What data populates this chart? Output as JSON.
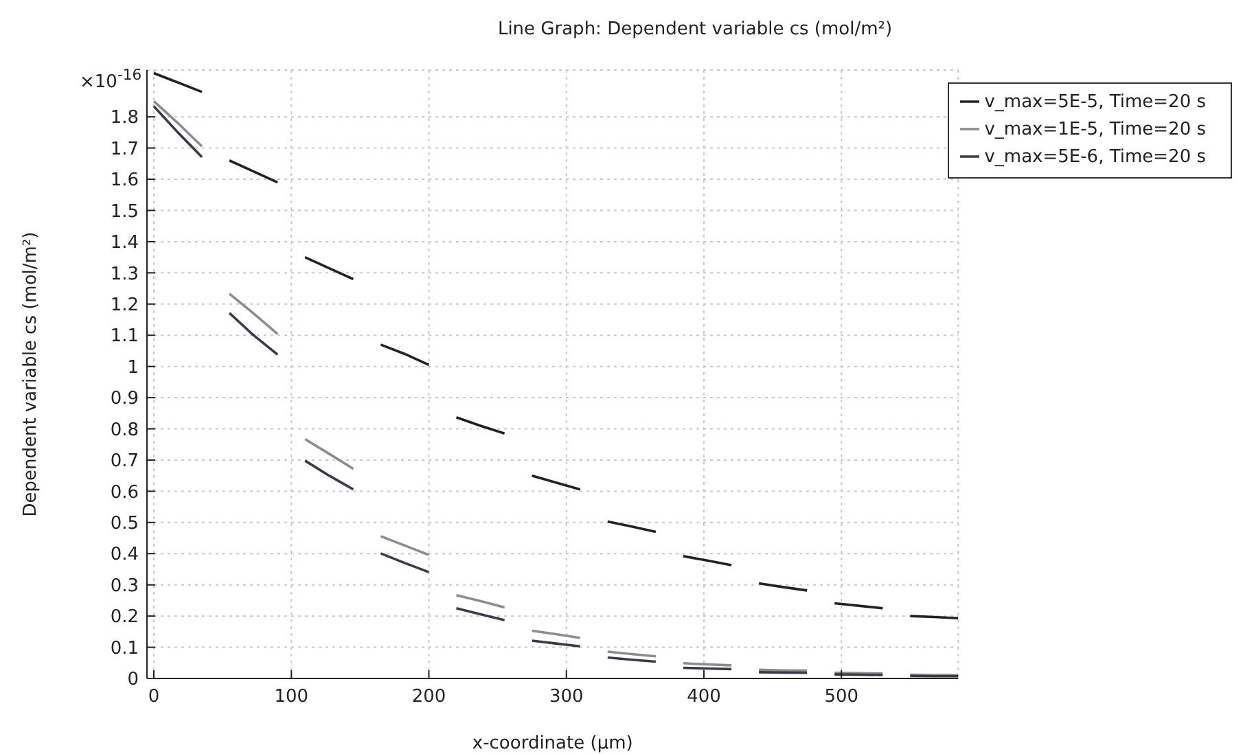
{
  "chart_data": {
    "type": "line",
    "title": "Line Graph: Dependent variable cs (mol/m²)",
    "xlabel": "x-coordinate (µm)",
    "ylabel": "Dependent variable cs (mol/m²)",
    "annotations": [
      "×10$^{-16}$"
    ],
    "x": [
      0,
      17.5,
      35,
      45,
      55,
      72.5,
      90,
      100,
      110,
      127.5,
      145,
      155,
      165,
      182.5,
      200,
      210,
      220,
      237.5,
      255,
      265,
      275,
      292.5,
      310,
      320,
      330,
      347.5,
      365,
      375,
      385,
      402.5,
      420,
      430,
      440,
      457.5,
      475,
      485,
      495,
      512.5,
      530,
      540,
      550,
      567.5,
      585
    ],
    "series": [
      {
        "name": "v_max=5E-5, Time=20 s",
        "color": "#222222",
        "values": [
          1.94,
          1.91,
          1.88,
          null,
          1.66,
          1.625,
          1.59,
          null,
          1.35,
          1.315,
          1.28,
          null,
          1.07,
          1.04,
          1.005,
          null,
          0.837,
          0.81,
          0.785,
          null,
          0.65,
          0.628,
          0.606,
          null,
          0.503,
          0.487,
          0.47,
          null,
          0.392,
          0.378,
          0.363,
          null,
          0.305,
          0.293,
          0.282,
          null,
          0.241,
          0.233,
          0.225,
          null,
          0.2,
          0.197,
          0.193
        ]
      },
      {
        "name": "v_max=1E-5, Time=20 s",
        "color": "#8c8c8c",
        "values": [
          1.85,
          1.78,
          1.705,
          null,
          1.233,
          1.17,
          1.104,
          null,
          0.767,
          0.72,
          0.672,
          null,
          0.456,
          0.426,
          0.396,
          null,
          0.267,
          0.248,
          0.228,
          null,
          0.153,
          0.142,
          0.13,
          null,
          0.086,
          0.078,
          0.071,
          null,
          0.049,
          0.045,
          0.042,
          null,
          0.028,
          0.026,
          0.025,
          null,
          0.018,
          0.017,
          0.016,
          null,
          0.012,
          0.011,
          0.011
        ]
      },
      {
        "name": "v_max=5E-6, Time=20 s",
        "color": "#3a3a48",
        "values": [
          1.834,
          1.75,
          1.671,
          null,
          1.171,
          1.1,
          1.038,
          null,
          0.698,
          0.65,
          0.606,
          null,
          0.401,
          0.37,
          0.341,
          null,
          0.225,
          0.206,
          0.187,
          null,
          0.121,
          0.112,
          0.103,
          null,
          0.067,
          0.06,
          0.054,
          null,
          0.034,
          0.032,
          0.03,
          null,
          0.02,
          0.019,
          0.018,
          null,
          0.013,
          0.012,
          0.011,
          null,
          0.008,
          0.007,
          0.007
        ]
      }
    ],
    "xlim": [
      -5,
      585
    ],
    "xticks": [
      0,
      100,
      200,
      300,
      400,
      500
    ],
    "ylim": [
      0,
      1.95
    ],
    "yticks": [
      0,
      0.1,
      0.2,
      0.3,
      0.4,
      0.5,
      0.6,
      0.7,
      0.8,
      0.9,
      1,
      1.1,
      1.2,
      1.3,
      1.4,
      1.5,
      1.6,
      1.7,
      1.8
    ],
    "grid": true,
    "legend": "top right",
    "marker": "none",
    "line_style": "solid"
  }
}
